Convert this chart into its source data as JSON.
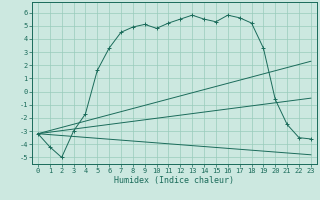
{
  "xlabel": "Humidex (Indice chaleur)",
  "xlim": [
    -0.5,
    23.5
  ],
  "ylim": [
    -5.5,
    6.8
  ],
  "yticks": [
    -5,
    -4,
    -3,
    -2,
    -1,
    0,
    1,
    2,
    3,
    4,
    5,
    6
  ],
  "xticks": [
    0,
    1,
    2,
    3,
    4,
    5,
    6,
    7,
    8,
    9,
    10,
    11,
    12,
    13,
    14,
    15,
    16,
    17,
    18,
    19,
    20,
    21,
    22,
    23
  ],
  "bg_color": "#cce8e0",
  "line_color": "#1a6b5a",
  "grid_color": "#99ccbb",
  "line1_x": [
    0,
    1,
    2,
    3,
    4,
    5,
    6,
    7,
    8,
    9,
    10,
    11,
    12,
    13,
    14,
    15,
    16,
    17,
    18,
    19,
    20,
    21,
    22,
    23
  ],
  "line1_y": [
    -3.2,
    -4.2,
    -5.0,
    -3.0,
    -1.7,
    1.6,
    3.3,
    4.5,
    4.9,
    5.1,
    4.8,
    5.2,
    5.5,
    5.8,
    5.5,
    5.3,
    5.8,
    5.6,
    5.2,
    3.3,
    -0.6,
    -2.5,
    -3.5,
    -3.6
  ],
  "line2_x": [
    0,
    23
  ],
  "line2_y": [
    -3.2,
    2.3
  ],
  "line3_x": [
    0,
    23
  ],
  "line3_y": [
    -3.2,
    -0.5
  ],
  "line4_x": [
    0,
    23
  ],
  "line4_y": [
    -3.2,
    -4.8
  ]
}
